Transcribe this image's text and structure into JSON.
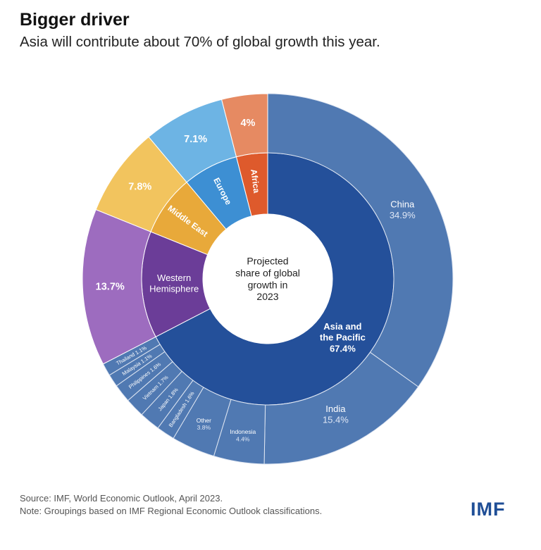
{
  "title": "Bigger driver",
  "subtitle": "Asia will contribute about 70% of global growth this year.",
  "source": "Source: IMF, World Economic Outlook, April 2023.",
  "note": "Note: Groupings based on IMF Regional Economic Outlook classifications.",
  "logo": "IMF",
  "chart_data": {
    "type": "sunburst",
    "center_label": [
      "Projected",
      "share of global",
      "growth in",
      "2023"
    ],
    "unit": "%",
    "regions": [
      {
        "name": "Asia and the Pacific",
        "label_lines": [
          "Asia and",
          "the Pacific"
        ],
        "value": 67.4,
        "value_label": "67.4%",
        "inner_color": "#24509a",
        "outer_color": "#5079b2",
        "children": [
          {
            "name": "China",
            "value": 34.9,
            "label": "34.9%"
          },
          {
            "name": "India",
            "value": 15.4,
            "label": "15.4%"
          },
          {
            "name": "Indonesia",
            "value": 4.4,
            "label": "4.4%"
          },
          {
            "name": "Other",
            "value": 3.8,
            "label": "3.8%"
          },
          {
            "name": "Bangladesh",
            "value": 1.6,
            "label": "1.6%"
          },
          {
            "name": "Japan",
            "value": 1.8,
            "label": "1.8%"
          },
          {
            "name": "Vietnam",
            "value": 1.7,
            "label": "1.7%"
          },
          {
            "name": "Philippines",
            "value": 1.6,
            "label": "1.6%"
          },
          {
            "name": "Malaysia",
            "value": 1.1,
            "label": "1.1%"
          },
          {
            "name": "Thailand",
            "value": 1.1,
            "label": "1.1%"
          }
        ]
      },
      {
        "name": "Western Hemisphere",
        "label_lines": [
          "Western",
          "Hemisphere"
        ],
        "value": 13.7,
        "value_label": "13.7%",
        "inner_color": "#6b3d98",
        "outer_color": "#9d6cbf"
      },
      {
        "name": "Middle East",
        "label_lines": [
          "Middle East"
        ],
        "value": 7.8,
        "value_label": "7.8%",
        "inner_color": "#e8a93a",
        "outer_color": "#f2c45e"
      },
      {
        "name": "Europe",
        "label_lines": [
          "Europe"
        ],
        "value": 7.1,
        "value_label": "7.1%",
        "inner_color": "#3d8fd3",
        "outer_color": "#6db4e4"
      },
      {
        "name": "Africa",
        "label_lines": [
          "Africa"
        ],
        "value": 4,
        "value_label": "4%",
        "inner_color": "#de5a2c",
        "outer_color": "#e68a62"
      }
    ]
  }
}
